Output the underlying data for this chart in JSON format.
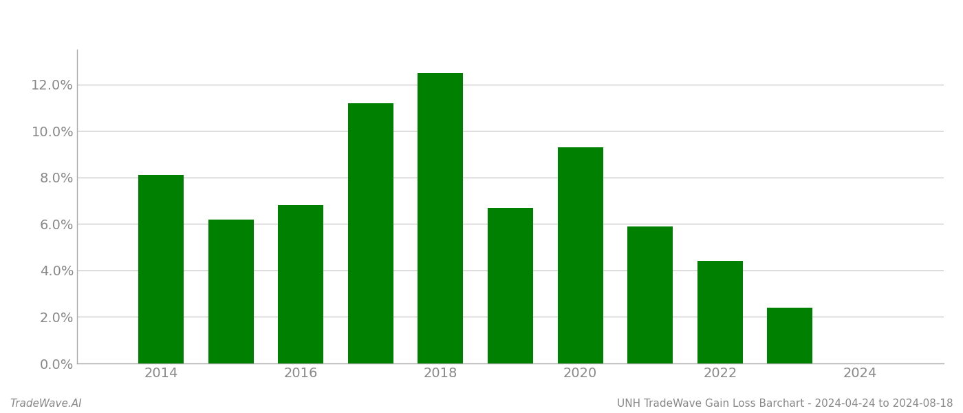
{
  "years": [
    2014,
    2015,
    2016,
    2017,
    2018,
    2019,
    2020,
    2021,
    2022,
    2023
  ],
  "values": [
    0.081,
    0.062,
    0.068,
    0.112,
    0.125,
    0.067,
    0.093,
    0.059,
    0.044,
    0.024
  ],
  "bar_color": "#008000",
  "background_color": "#ffffff",
  "grid_color": "#bbbbbb",
  "ylabel_color": "#888888",
  "xlabel_color": "#888888",
  "footer_left": "TradeWave.AI",
  "footer_right": "UNH TradeWave Gain Loss Barchart - 2024-04-24 to 2024-08-18",
  "footer_color": "#888888",
  "footer_fontsize": 11,
  "ylim": [
    0,
    0.135
  ],
  "yticks": [
    0.0,
    0.02,
    0.04,
    0.06,
    0.08,
    0.1,
    0.12
  ],
  "xlim": [
    2012.8,
    2025.2
  ],
  "xticks": [
    2014,
    2016,
    2018,
    2020,
    2022,
    2024
  ],
  "bar_width": 0.65,
  "tick_fontsize": 14,
  "spine_color": "#aaaaaa"
}
